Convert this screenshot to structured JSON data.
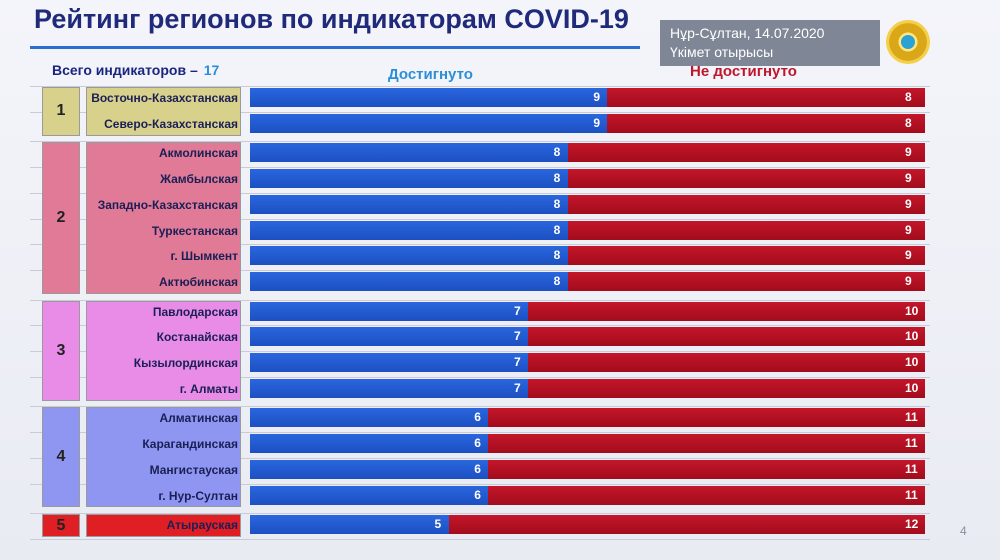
{
  "header": {
    "title": "Рейтинг регионов по индикаторам COVID-19",
    "date_line1": "Нұр-Сұлтан, 14.07.2020",
    "date_line2": "Үкімет отырысы"
  },
  "total_label": "Всего индикаторов –",
  "total_value": "17",
  "page_number": "4",
  "colors": {
    "achieved": "#2a66de",
    "not_achieved": "#c4162a"
  },
  "groups": [
    {
      "rank": "1",
      "color": "#d8d18c",
      "count": 2
    },
    {
      "rank": "2",
      "color": "#e07a96",
      "count": 6
    },
    {
      "rank": "3",
      "color": "#e98ce8",
      "count": 4
    },
    {
      "rank": "4",
      "color": "#8f96f2",
      "count": 4
    },
    {
      "rank": "5",
      "color": "#e01f24",
      "count": 1
    }
  ],
  "chart_data": {
    "type": "bar",
    "orientation": "horizontal",
    "stacked": true,
    "categories": [
      "Восточно-Казахстанская",
      "Северо-Казахстанская",
      "Акмолинская",
      "Жамбылская",
      "Западно-Казахстанская",
      "Туркестанская",
      "г. Шымкент",
      "Актюбинская",
      "Павлодарская",
      "Костанайская",
      "Кызылординская",
      "г. Алматы",
      "Алматинская",
      "Карагандинская",
      "Мангистауская",
      "г. Нур-Султан",
      "Атырауская"
    ],
    "series": [
      {
        "name": "Достигнуто",
        "values": [
          9,
          9,
          8,
          8,
          8,
          8,
          8,
          8,
          7,
          7,
          7,
          7,
          6,
          6,
          6,
          6,
          5
        ]
      },
      {
        "name": "Не достигнуто",
        "values": [
          8,
          8,
          9,
          9,
          9,
          9,
          9,
          9,
          10,
          10,
          10,
          10,
          11,
          11,
          11,
          11,
          12
        ]
      }
    ],
    "xlim": [
      0,
      17
    ],
    "legend": "top",
    "grid": false
  }
}
